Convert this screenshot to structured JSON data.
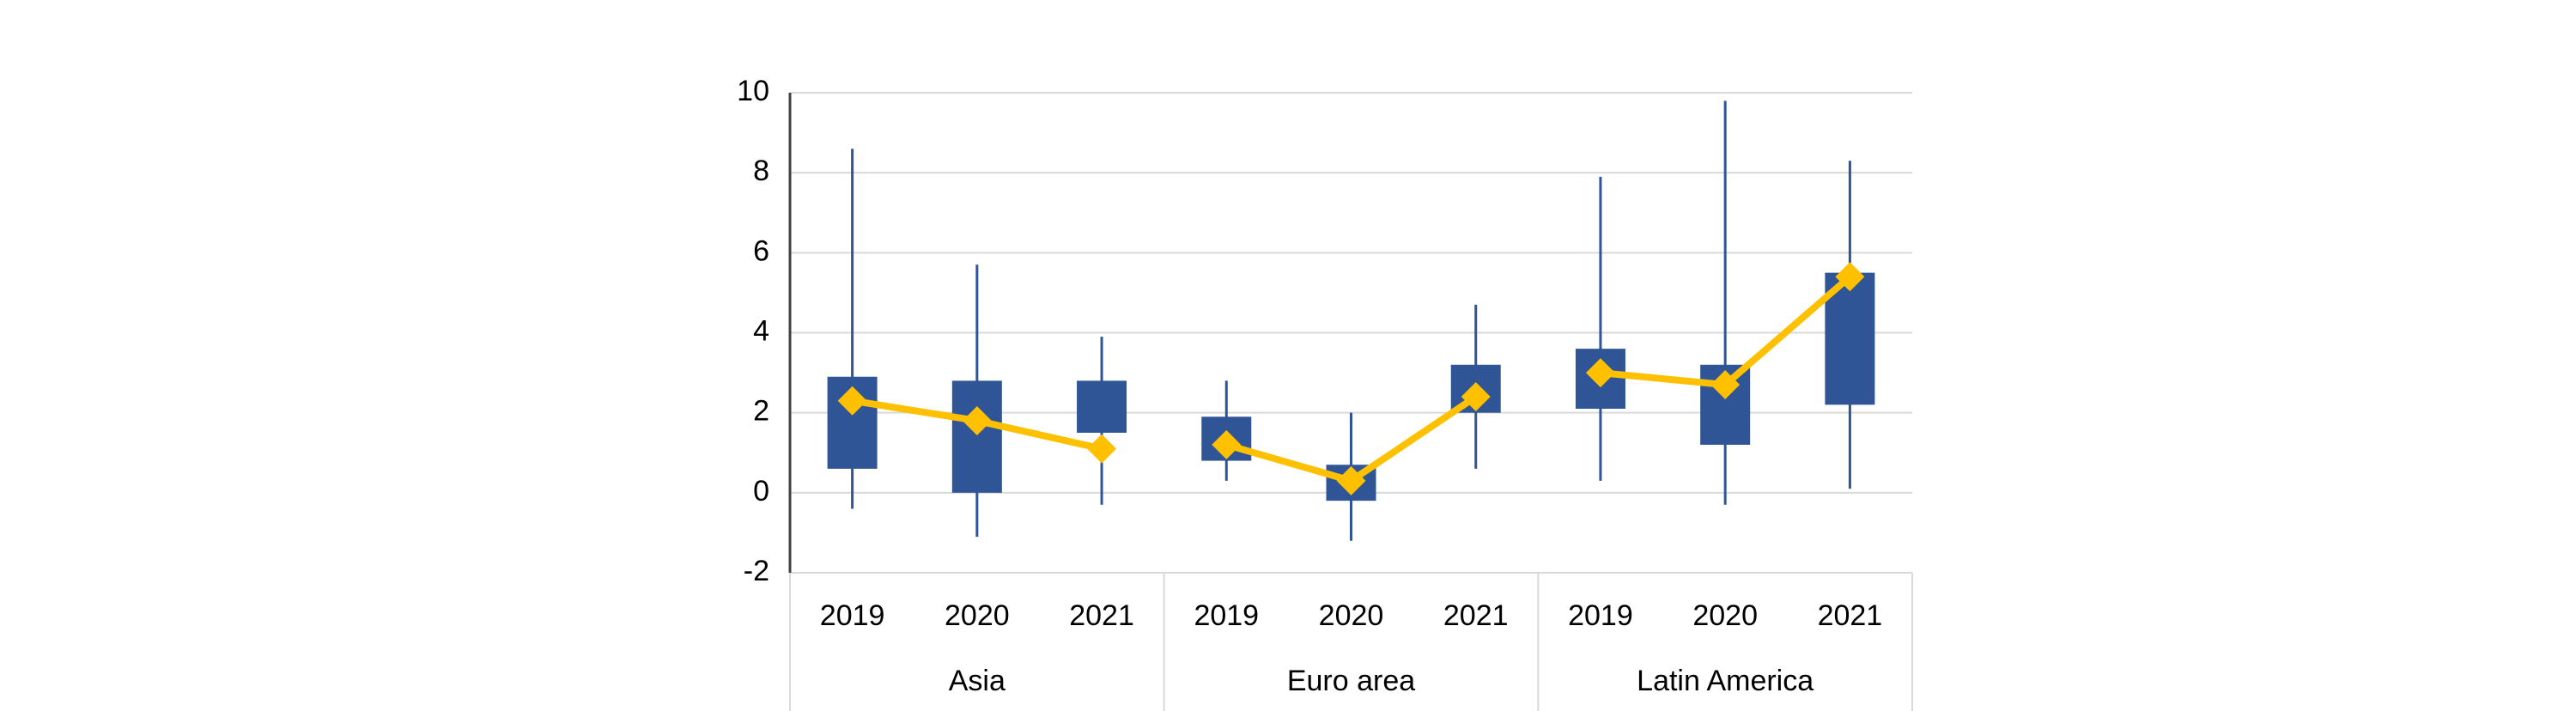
{
  "chart_data": {
    "type": "box",
    "ylim": [
      -2,
      10
    ],
    "yticks": [
      -2,
      0,
      2,
      4,
      6,
      8,
      10
    ],
    "grid": true,
    "box_color": "#2f5597",
    "line_color": "#ffc000",
    "groups": [
      {
        "name": "Asia",
        "categories": [
          "2019",
          "2020",
          "2021"
        ],
        "low": [
          -0.4,
          -1.1,
          -0.3
        ],
        "q1": [
          0.6,
          0.0,
          1.5
        ],
        "median": [
          2.3,
          1.8,
          1.1
        ],
        "q3": [
          2.9,
          2.8,
          2.8
        ],
        "high": [
          8.6,
          5.7,
          3.9
        ]
      },
      {
        "name": "Euro area",
        "categories": [
          "2019",
          "2020",
          "2021"
        ],
        "low": [
          0.3,
          -1.2,
          0.6
        ],
        "q1": [
          0.8,
          -0.2,
          2.0
        ],
        "median": [
          1.2,
          0.3,
          2.4
        ],
        "q3": [
          1.9,
          0.7,
          3.2
        ],
        "high": [
          2.8,
          2.0,
          4.7
        ]
      },
      {
        "name": "Latin America",
        "categories": [
          "2019",
          "2020",
          "2021"
        ],
        "low": [
          0.3,
          -0.3,
          0.1
        ],
        "q1": [
          2.1,
          1.2,
          2.2
        ],
        "median": [
          3.0,
          2.7,
          5.4
        ],
        "q3": [
          3.6,
          3.2,
          5.5
        ],
        "high": [
          7.9,
          9.8,
          8.3
        ]
      }
    ]
  }
}
